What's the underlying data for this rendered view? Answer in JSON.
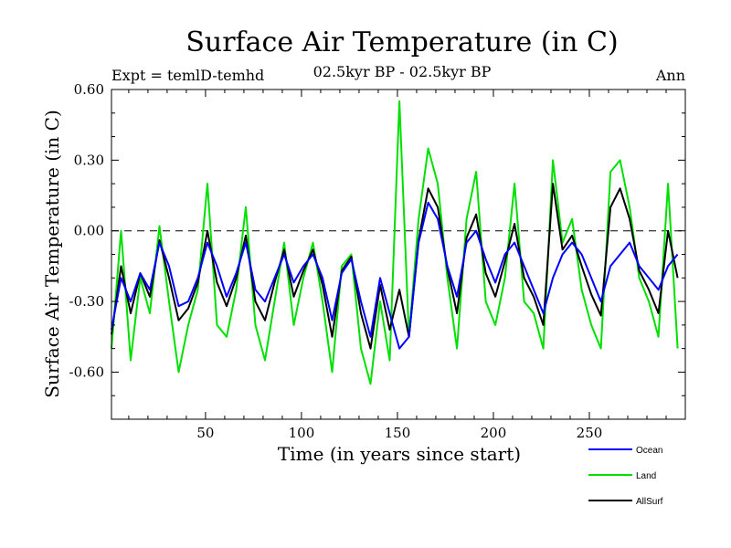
{
  "chart_data": {
    "type": "line",
    "title": "Surface Air Temperature (in C)",
    "subtitle": "02.5kyr BP - 02.5kyr BP",
    "expt_label": "Expt = temlD-temhd",
    "season_label": "Ann",
    "xlabel": "Time (in years since start)",
    "ylabel": "Surface Air Temperature (in C)",
    "xlim": [
      1,
      300
    ],
    "ylim": [
      -0.8,
      0.6
    ],
    "x_ticks": [
      50,
      100,
      150,
      200,
      250
    ],
    "x_tick_labels": [
      "50",
      "100",
      "150",
      "200",
      "250"
    ],
    "y_ticks": [
      -0.6,
      -0.3,
      0.0,
      0.3,
      0.6
    ],
    "y_tick_labels": [
      "-0.60",
      "-0.30",
      "0.00",
      "0.30",
      "0.60"
    ],
    "zero_line": 0.0,
    "legend_position": "bottom-right, below plot",
    "x_step_years": 5,
    "series": [
      {
        "name": "Ocean",
        "color": "#0000ff",
        "values": [
          -0.42,
          -0.2,
          -0.3,
          -0.18,
          -0.25,
          -0.05,
          -0.15,
          -0.32,
          -0.3,
          -0.2,
          -0.05,
          -0.15,
          -0.28,
          -0.18,
          -0.05,
          -0.25,
          -0.3,
          -0.2,
          -0.1,
          -0.22,
          -0.15,
          -0.1,
          -0.2,
          -0.38,
          -0.18,
          -0.12,
          -0.3,
          -0.45,
          -0.2,
          -0.35,
          -0.5,
          -0.45,
          -0.05,
          0.12,
          0.05,
          -0.15,
          -0.28,
          -0.05,
          0.0,
          -0.12,
          -0.22,
          -0.1,
          -0.05,
          -0.15,
          -0.25,
          -0.35,
          -0.2,
          -0.1,
          -0.05,
          -0.1,
          -0.2,
          -0.3,
          -0.15,
          -0.1,
          -0.05,
          -0.15,
          -0.2,
          -0.25,
          -0.15,
          -0.1
        ],
        "note": "sampled every 5 years, approximate"
      },
      {
        "name": "Land",
        "color": "#00e000",
        "values": [
          -0.5,
          0.0,
          -0.55,
          -0.2,
          -0.35,
          0.02,
          -0.3,
          -0.6,
          -0.4,
          -0.25,
          0.2,
          -0.4,
          -0.45,
          -0.25,
          0.1,
          -0.4,
          -0.55,
          -0.3,
          -0.05,
          -0.4,
          -0.2,
          -0.05,
          -0.3,
          -0.6,
          -0.15,
          -0.1,
          -0.5,
          -0.65,
          -0.3,
          -0.55,
          0.55,
          -0.45,
          0.05,
          0.35,
          0.2,
          -0.2,
          -0.5,
          0.05,
          0.25,
          -0.3,
          -0.4,
          -0.2,
          0.2,
          -0.3,
          -0.35,
          -0.5,
          0.3,
          -0.05,
          0.05,
          -0.25,
          -0.4,
          -0.5,
          0.25,
          0.3,
          0.1,
          -0.2,
          -0.3,
          -0.45,
          0.2,
          -0.5
        ],
        "note": "sampled every 5 years, approximate"
      },
      {
        "name": "AllSurf",
        "color": "#000000",
        "values": [
          -0.44,
          -0.15,
          -0.35,
          -0.18,
          -0.28,
          -0.04,
          -0.2,
          -0.38,
          -0.33,
          -0.22,
          0.0,
          -0.22,
          -0.32,
          -0.2,
          -0.02,
          -0.3,
          -0.38,
          -0.22,
          -0.08,
          -0.28,
          -0.17,
          -0.08,
          -0.23,
          -0.45,
          -0.17,
          -0.11,
          -0.35,
          -0.5,
          -0.23,
          -0.42,
          -0.25,
          -0.45,
          -0.04,
          0.18,
          0.1,
          -0.16,
          -0.35,
          -0.03,
          0.07,
          -0.18,
          -0.28,
          -0.13,
          0.03,
          -0.2,
          -0.28,
          -0.4,
          0.2,
          -0.08,
          -0.02,
          -0.15,
          -0.27,
          -0.36,
          0.1,
          0.18,
          0.05,
          -0.17,
          -0.25,
          -0.35,
          0.0,
          -0.2
        ],
        "note": "sampled every 5 years, approximate"
      }
    ]
  }
}
